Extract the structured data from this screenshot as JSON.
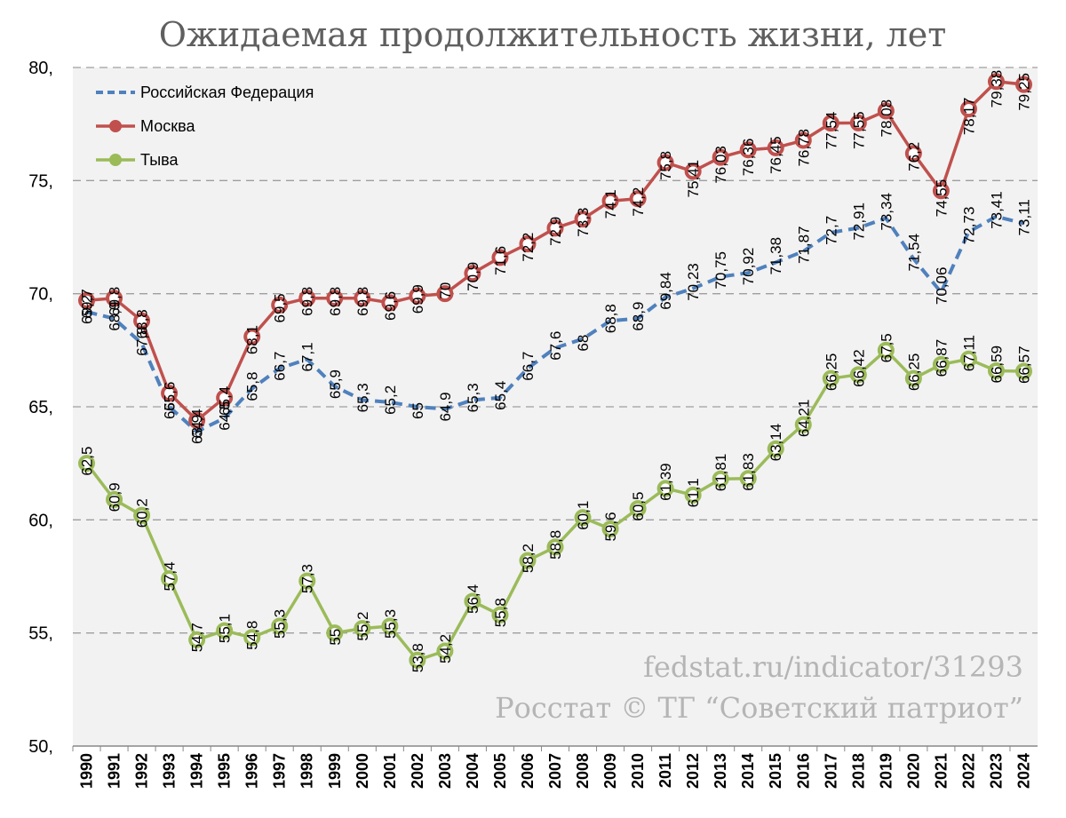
{
  "title": "Ожидаемая продолжительность жизни, лет",
  "watermark": {
    "line1": "fedstat.ru/indicator/31293",
    "line2": "Росстат © ТГ “Советский патриот”"
  },
  "colors": {
    "rf": "#4f81bd",
    "moscow": "#c0504d",
    "tuva": "#9bbb59",
    "plot_bg": "#f2f2f2",
    "grid": "#9e9e9e"
  },
  "chart_data": {
    "type": "line",
    "title": "Ожидаемая продолжительность жизни, лет",
    "xlabel": "",
    "ylabel": "",
    "ylim": [
      50,
      80
    ],
    "ytick_labels": [
      "50,",
      "55,",
      "60,",
      "65,",
      "70,",
      "75,",
      "80,"
    ],
    "yticks": [
      50,
      55,
      60,
      65,
      70,
      75,
      80
    ],
    "grid": true,
    "legend_position": "top-left",
    "categories": [
      "1990",
      "1991",
      "1992",
      "1993",
      "1994",
      "1995",
      "1996",
      "1997",
      "1998",
      "1999",
      "2000",
      "2001",
      "2002",
      "2003",
      "2004",
      "2005",
      "2006",
      "2007",
      "2008",
      "2009",
      "2010",
      "2011",
      "2012",
      "2013",
      "2014",
      "2015",
      "2016",
      "2017",
      "2018",
      "2019",
      "2020",
      "2021",
      "2022",
      "2023",
      "2024"
    ],
    "series": [
      {
        "name": "Российская Федерация",
        "style": "dashed",
        "values": [
          69.2,
          68.9,
          67.8,
          65,
          63.9,
          64.5,
          65.8,
          66.7,
          67.1,
          65.9,
          65.3,
          65.2,
          65,
          64.9,
          65.3,
          65.4,
          66.7,
          67.6,
          68,
          68.8,
          68.9,
          69.84,
          70.23,
          70.75,
          70.92,
          71.38,
          71.87,
          72.7,
          72.91,
          73.34,
          71.54,
          70.06,
          72.73,
          73.41,
          73.11
        ],
        "labels": [
          "69,2",
          "68,9",
          "67,8",
          "65",
          "63,9",
          "64,5",
          "65,8",
          "66,7",
          "67,1",
          "65,9",
          "65,3",
          "65,2",
          "65",
          "64,9",
          "65,3",
          "65,4",
          "66,7",
          "67,6",
          "68",
          "68,8",
          "68,9",
          "69,84",
          "70,23",
          "70,75",
          "70,92",
          "71,38",
          "71,87",
          "72,7",
          "72,91",
          "73,34",
          "71,54",
          "70,06",
          "72,73",
          "73,41",
          "73,11"
        ]
      },
      {
        "name": "Москва",
        "style": "solid-markers",
        "values": [
          69.7,
          69.8,
          68.8,
          65.6,
          64.4,
          65.4,
          68.1,
          69.5,
          69.8,
          69.8,
          69.8,
          69.6,
          69.9,
          70,
          70.9,
          71.6,
          72.2,
          72.9,
          73.3,
          74.1,
          74.2,
          75.8,
          75.41,
          76.03,
          76.36,
          76.45,
          76.78,
          77.54,
          77.55,
          78.08,
          76.2,
          74.55,
          78.17,
          79.38,
          79.25
        ],
        "labels": [
          "69,7",
          "69,8",
          "68,8",
          "65,6",
          "64,4",
          "65,4",
          "68,1",
          "69,5",
          "69,8",
          "69,8",
          "69,8",
          "69,6",
          "69,9",
          "70",
          "70,9",
          "71,6",
          "72,2",
          "72,9",
          "73,3",
          "74,1",
          "74,2",
          "75,8",
          "75,41",
          "76,03",
          "76,36",
          "76,45",
          "76,78",
          "77,54",
          "77,55",
          "78,08",
          "76,2",
          "74,55",
          "78,17",
          "79,38",
          "79,25"
        ]
      },
      {
        "name": "Тыва",
        "style": "solid-markers",
        "values": [
          62.5,
          60.9,
          60.2,
          57.4,
          54.7,
          55.1,
          54.8,
          55.3,
          57.3,
          55,
          55.2,
          55.3,
          53.8,
          54.2,
          56.4,
          55.8,
          58.2,
          58.8,
          60.1,
          59.6,
          60.5,
          61.39,
          61.1,
          61.81,
          61.83,
          63.14,
          64.21,
          66.25,
          66.42,
          67.5,
          66.25,
          66.87,
          67.11,
          66.59,
          66.57
        ],
        "labels": [
          "62,5",
          "60,9",
          "60,2",
          "57,4",
          "54,7",
          "55,1",
          "54,8",
          "55,3",
          "57,3",
          "55",
          "55,2",
          "55,3",
          "53,8",
          "54,2",
          "56,4",
          "55,8",
          "58,2",
          "58,8",
          "60,1",
          "59,6",
          "60,5",
          "61,39",
          "61,1",
          "61,81",
          "61,83",
          "63,14",
          "64,21",
          "66,25",
          "66,42",
          "67,5",
          "66,25",
          "66,87",
          "67,11",
          "66,59",
          "66,57"
        ]
      }
    ]
  }
}
